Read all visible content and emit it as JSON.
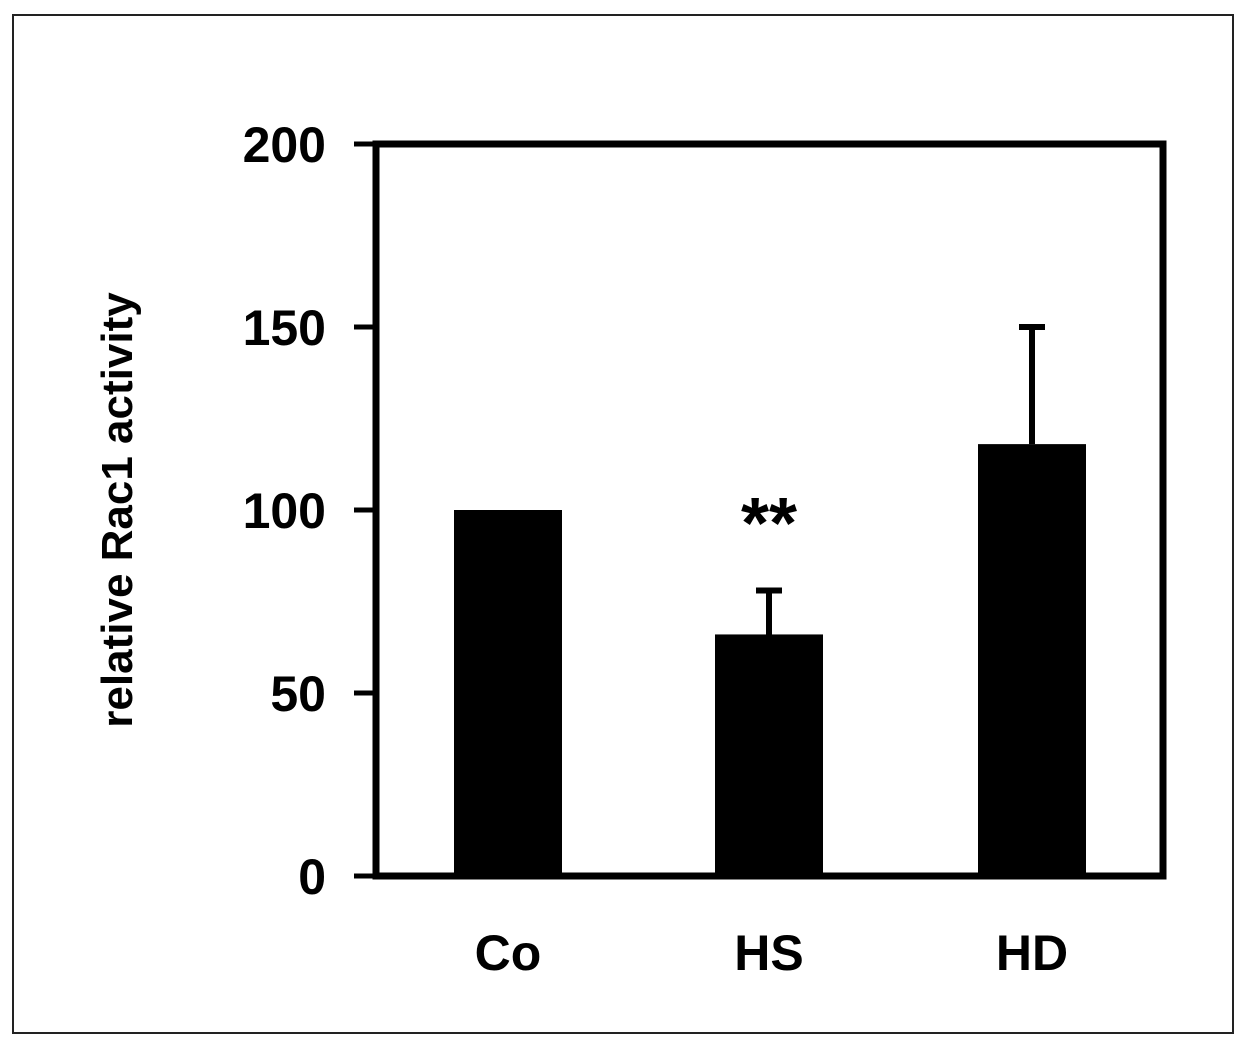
{
  "chart_data": {
    "type": "bar",
    "categories": [
      "Co",
      "HS",
      "HD"
    ],
    "values": [
      100,
      66,
      118
    ],
    "errors": [
      0,
      12,
      32
    ],
    "ylabel": "relative Rac1 activity",
    "ylim": [
      0,
      200
    ],
    "yticks": [
      0,
      50,
      100,
      150,
      200
    ],
    "ytick_labels": [
      "0",
      "50",
      "100",
      "150",
      "200"
    ],
    "annotations": [
      {
        "category": "HS",
        "text": "**"
      }
    ],
    "bar_color": "#000000",
    "grid": false
  }
}
